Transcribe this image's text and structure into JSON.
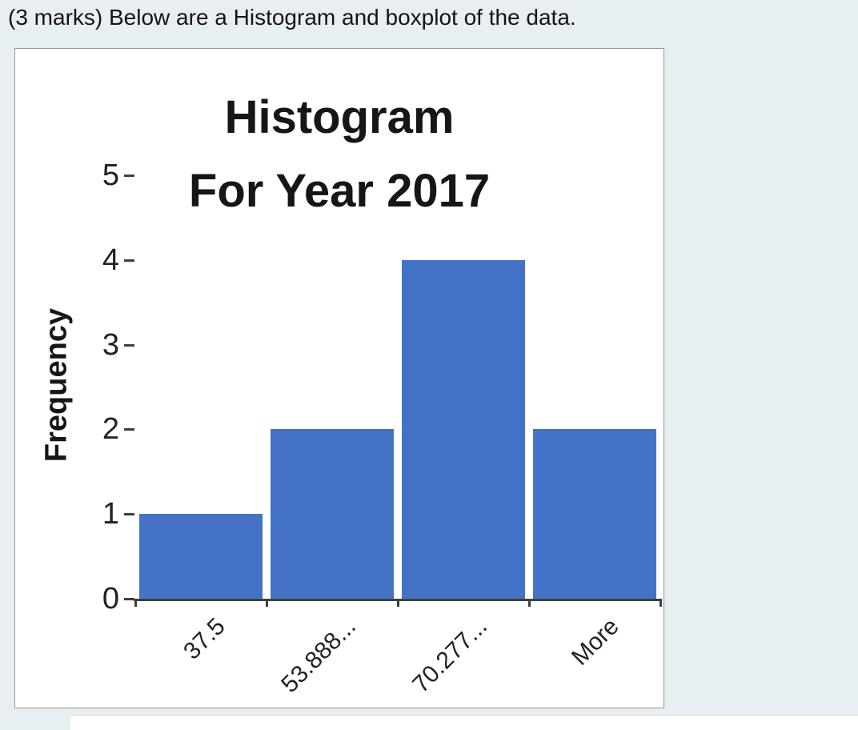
{
  "page": {
    "background": "#e8eff2",
    "heading": "(3 marks) Below are a Histogram and boxplot of the data."
  },
  "chart_data": {
    "type": "bar",
    "title": "Histogram For Year 2017",
    "title_lines": [
      "Histogram",
      "For Year 2017"
    ],
    "xlabel": "",
    "ylabel": "Frequency",
    "categories": [
      "37.5",
      "53.888...",
      "70.277...",
      "More"
    ],
    "values": [
      1,
      2,
      4,
      2
    ],
    "ylim": [
      0,
      5
    ],
    "yticks": [
      0,
      1,
      2,
      3,
      4,
      5
    ],
    "bar_color": "#4472c4",
    "axis_color": "#3f3f3f",
    "grid": "off",
    "legend": "none"
  }
}
